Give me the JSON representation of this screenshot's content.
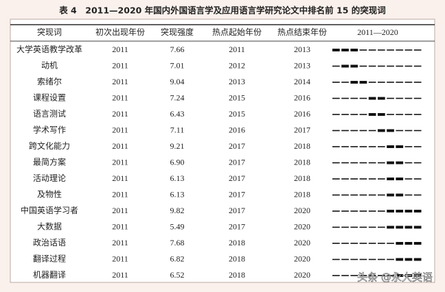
{
  "header": {
    "title": "表 4　2011—2020 年国内外国语言学及应用语言学研究论文中排名前 15 的突现词"
  },
  "table": {
    "columns": [
      "突现词",
      "初次出现年份",
      "突现强度",
      "热点起始年份",
      "热点结束年份",
      "2011—2020"
    ],
    "rows": [
      {
        "term": "大学英语教学改革",
        "first": 2011,
        "strength": "7.66",
        "start": 2011,
        "end": 2013
      },
      {
        "term": "动机",
        "first": 2011,
        "strength": "7.01",
        "start": 2012,
        "end": 2013
      },
      {
        "term": "索绪尔",
        "first": 2011,
        "strength": "9.04",
        "start": 2013,
        "end": 2014
      },
      {
        "term": "课程设置",
        "first": 2011,
        "strength": "7.24",
        "start": 2015,
        "end": 2016
      },
      {
        "term": "语言测试",
        "first": 2011,
        "strength": "6.43",
        "start": 2015,
        "end": 2016
      },
      {
        "term": "学术写作",
        "first": 2011,
        "strength": "7.11",
        "start": 2016,
        "end": 2017
      },
      {
        "term": "跨文化能力",
        "first": 2011,
        "strength": "9.21",
        "start": 2017,
        "end": 2018
      },
      {
        "term": "最简方案",
        "first": 2011,
        "strength": "6.90",
        "start": 2017,
        "end": 2018
      },
      {
        "term": "活动理论",
        "first": 2011,
        "strength": "6.13",
        "start": 2017,
        "end": 2018
      },
      {
        "term": "及物性",
        "first": 2011,
        "strength": "6.13",
        "start": 2017,
        "end": 2018
      },
      {
        "term": "中国英语学习者",
        "first": 2011,
        "strength": "9.82",
        "start": 2017,
        "end": 2020
      },
      {
        "term": "大数据",
        "first": 2011,
        "strength": "5.49",
        "start": 2017,
        "end": 2020
      },
      {
        "term": "政治话语",
        "first": 2011,
        "strength": "7.68",
        "start": 2018,
        "end": 2020
      },
      {
        "term": "翻译过程",
        "first": 2011,
        "strength": "6.82",
        "start": 2018,
        "end": 2020
      },
      {
        "term": "机器翻译",
        "first": 2011,
        "strength": "6.52",
        "start": 2018,
        "end": 2020
      }
    ]
  },
  "watermark": "头条 @永大英语"
}
